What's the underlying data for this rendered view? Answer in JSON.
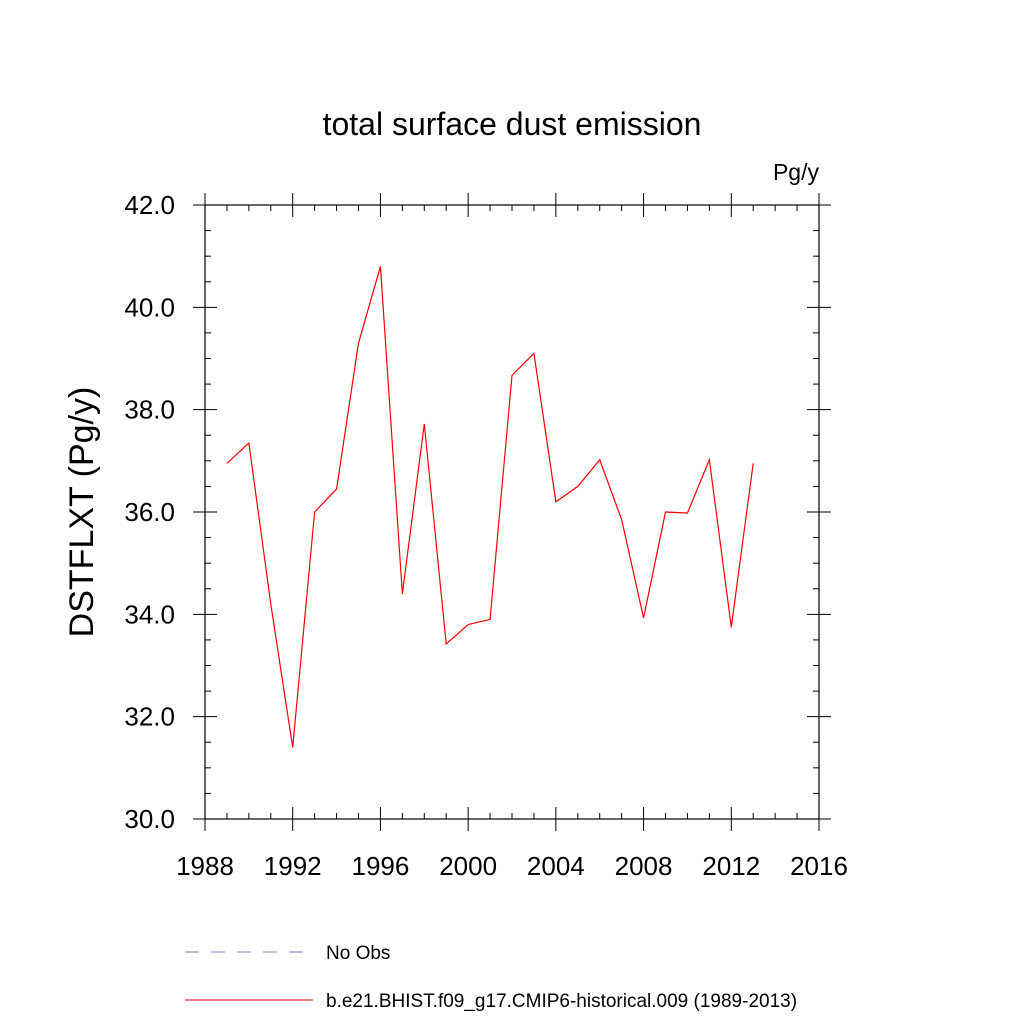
{
  "chart_data": {
    "type": "line",
    "title": "total surface dust emission",
    "units_label": "Pg/y",
    "ylabel": "DSTFLXT  (Pg/y)",
    "xlabel": "",
    "xlim": [
      1988,
      2016
    ],
    "ylim": [
      30.0,
      42.0
    ],
    "x_ticks": [
      1988,
      1992,
      1996,
      2000,
      2004,
      2008,
      2012,
      2016
    ],
    "x_tick_labels": [
      "1988",
      "1992",
      "1996",
      "2000",
      "2004",
      "2008",
      "2012",
      "2016"
    ],
    "y_ticks": [
      30,
      32,
      34,
      36,
      38,
      40,
      42
    ],
    "y_tick_labels": [
      "30.0",
      "32.0",
      "34.0",
      "36.0",
      "38.0",
      "40.0",
      "42.0"
    ],
    "grid": false,
    "legend_position": "bottom",
    "series": [
      {
        "name": "No Obs",
        "color": "#7b7bc8",
        "style": "dashed",
        "x": [],
        "y": []
      },
      {
        "name": "b.e21.BHIST.f09_g17.CMIP6-historical.009 (1989-2013)",
        "color": "#ff0000",
        "style": "solid",
        "x": [
          1989,
          1990,
          1991,
          1992,
          1993,
          1994,
          1995,
          1996,
          1997,
          1998,
          1999,
          2000,
          2001,
          2002,
          2003,
          2004,
          2005,
          2006,
          2007,
          2008,
          2009,
          2010,
          2011,
          2012,
          2013
        ],
        "y": [
          36.95,
          37.35,
          34.2,
          31.4,
          36.0,
          36.45,
          39.3,
          40.8,
          34.4,
          37.72,
          33.42,
          33.8,
          33.9,
          38.67,
          39.1,
          36.2,
          36.5,
          37.02,
          35.85,
          33.93,
          36.0,
          35.98,
          37.02,
          33.75,
          36.95
        ]
      }
    ]
  }
}
